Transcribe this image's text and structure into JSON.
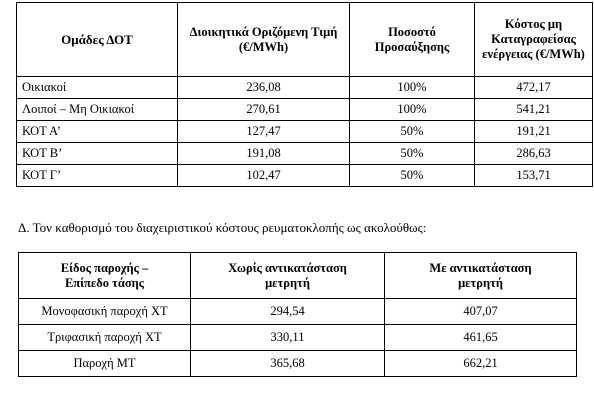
{
  "table1": {
    "headers": [
      "Ομάδες ΔΟΤ",
      "Διοικητικά Οριζόμενη Τιμή (€/MWh)",
      "Ποσοστό Προσαύξησης",
      "Κόστος μη Καταγραφείσας ενέργειας (€/MWh)"
    ],
    "rows": [
      [
        "Οικιακοί",
        "236,08",
        "100%",
        "472,17"
      ],
      [
        "Λοιποί – Μη Οικιακοί",
        "270,61",
        "100%",
        "541,21"
      ],
      [
        "ΚΟΤ Α’",
        "127,47",
        "50%",
        "191,21"
      ],
      [
        "ΚΟΤ Β’",
        "191,08",
        "50%",
        "286,63"
      ],
      [
        "ΚΟΤ Γ’",
        "102,47",
        "50%",
        "153,71"
      ]
    ]
  },
  "intro_text": "Δ. Τον καθορισμό του διαχειριστικού κόστους ρευματοκλοπής ως ακολούθως:",
  "table2": {
    "headers": [
      "Είδος παροχής – Επίπεδο τάσης",
      "Χωρίς αντικατάσταση μετρητή",
      "Με αντικατάσταση μετρητή"
    ],
    "rows": [
      [
        "Μονοφασική παροχή ΧΤ",
        "294,54",
        "407,07"
      ],
      [
        "Τριφασική παροχή ΧΤ",
        "330,11",
        "461,65"
      ],
      [
        "Παροχή ΜΤ",
        "365,68",
        "662,21"
      ]
    ]
  }
}
